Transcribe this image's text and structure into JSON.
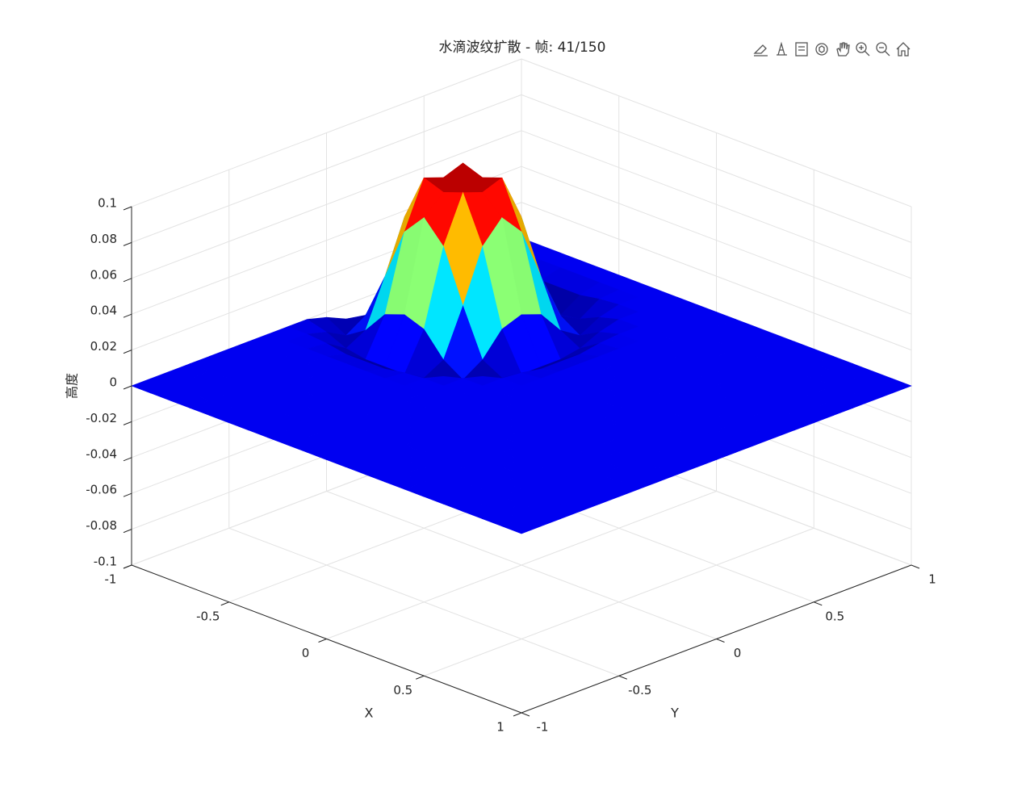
{
  "chart_data": {
    "type": "surface",
    "title": "水滴波纹扩散 - 帧: 41/150",
    "xlabel": "X",
    "ylabel": "Y",
    "zlabel": "高度",
    "xlim": [
      -1,
      1
    ],
    "ylim": [
      -1,
      1
    ],
    "zlim": [
      -0.1,
      0.1
    ],
    "xticks": [
      -1,
      -0.5,
      0,
      0.5,
      1
    ],
    "yticks": [
      -1,
      -0.5,
      0,
      0.5,
      1
    ],
    "zticks": [
      -0.1,
      -0.08,
      -0.06,
      -0.04,
      -0.02,
      0,
      0.02,
      0.04,
      0.06,
      0.08,
      0.1
    ],
    "grid": true,
    "colormap": "jet",
    "clim": [
      -0.01,
      0.08
    ],
    "x": [
      -1,
      -0.9,
      -0.8,
      -0.7,
      -0.6,
      -0.5,
      -0.4,
      -0.3,
      -0.2,
      -0.1,
      0,
      0.1,
      0.2,
      0.3,
      0.4,
      0.5,
      0.6,
      0.7,
      0.8,
      0.9,
      1
    ],
    "y": [
      -1,
      -0.9,
      -0.8,
      -0.7,
      -0.6,
      -0.5,
      -0.4,
      -0.3,
      -0.2,
      -0.1,
      0,
      0.1,
      0.2,
      0.3,
      0.4,
      0.5,
      0.6,
      0.7,
      0.8,
      0.9,
      1
    ],
    "z": [
      [
        0,
        0,
        0,
        0,
        0,
        0,
        0,
        0,
        0,
        0,
        0,
        0,
        0,
        0,
        0,
        0,
        0,
        0,
        0,
        0,
        0
      ],
      [
        0,
        0,
        0,
        0,
        0,
        0,
        0,
        0,
        0,
        0,
        0,
        0,
        0,
        0,
        0,
        0,
        0,
        0,
        0,
        0,
        0
      ],
      [
        0,
        0,
        0,
        0,
        0,
        0,
        0,
        0,
        0,
        0,
        0,
        0,
        0,
        0,
        0,
        0,
        0,
        0,
        0,
        0,
        0
      ],
      [
        0,
        0,
        0,
        0,
        0,
        0,
        0,
        0,
        0,
        0,
        0,
        0,
        0,
        0,
        0,
        0,
        0,
        0,
        0,
        0,
        0
      ],
      [
        0,
        0,
        0,
        0,
        0,
        0,
        0,
        0,
        0,
        0,
        0,
        0,
        0,
        0,
        0,
        0,
        0,
        0,
        0,
        0,
        0
      ],
      [
        0,
        0,
        0,
        0,
        0,
        0,
        0,
        0,
        0,
        0,
        0,
        0,
        0,
        0,
        0,
        0,
        0,
        0,
        0,
        0,
        0
      ],
      [
        0,
        0,
        0,
        0,
        0,
        0,
        0,
        0,
        0,
        0,
        0,
        0,
        0,
        0,
        0,
        0,
        0,
        0,
        0,
        0,
        0
      ],
      [
        0,
        0,
        0,
        0,
        0,
        0,
        0,
        0,
        0,
        0,
        0,
        0,
        0,
        0,
        0,
        0,
        0,
        0,
        0,
        0,
        0
      ],
      [
        0,
        0,
        -0.001,
        -0.003,
        -0.003,
        -0.003,
        -0.001,
        0,
        0,
        0,
        0,
        0,
        0,
        0,
        0,
        0,
        0,
        0,
        0,
        0,
        0
      ],
      [
        0,
        -0.003,
        -0.008,
        -0.01,
        -0.01,
        -0.01,
        -0.008,
        -0.003,
        0,
        0,
        0,
        0,
        0,
        0,
        0,
        0,
        0,
        0,
        0,
        0,
        0
      ],
      [
        -0.003,
        -0.009,
        -0.002,
        0.011,
        0.015,
        0.011,
        -0.002,
        -0.009,
        -0.003,
        0,
        0,
        0,
        0,
        0,
        0,
        0,
        0,
        0,
        0,
        0,
        0
      ],
      [
        -0.008,
        -0.002,
        0.024,
        0.053,
        0.065,
        0.053,
        0.024,
        -0.002,
        -0.008,
        -0.001,
        0,
        0,
        0,
        0,
        0,
        0,
        0,
        0,
        0,
        0,
        0
      ],
      [
        -0.01,
        0.011,
        0.053,
        0.079,
        0.075,
        0.079,
        0.053,
        0.011,
        -0.01,
        -0.003,
        0,
        0,
        0,
        0,
        0,
        0,
        0,
        0,
        0,
        0,
        0
      ],
      [
        -0.01,
        0.015,
        0.065,
        0.075,
        0.07,
        0.075,
        0.065,
        0.015,
        -0.01,
        -0.003,
        0,
        0,
        0,
        0,
        0,
        0,
        0,
        0,
        0,
        0,
        0
      ],
      [
        -0.01,
        0.011,
        0.053,
        0.079,
        0.075,
        0.079,
        0.053,
        0.011,
        -0.01,
        -0.003,
        0,
        0,
        0,
        0,
        0,
        0,
        0,
        0,
        0,
        0,
        0
      ],
      [
        -0.008,
        -0.002,
        0.024,
        0.053,
        0.065,
        0.053,
        0.024,
        -0.002,
        -0.008,
        -0.001,
        0,
        0,
        0,
        0,
        0,
        0,
        0,
        0,
        0,
        0,
        0
      ],
      [
        -0.003,
        -0.009,
        -0.002,
        0.011,
        0.015,
        0.011,
        -0.002,
        -0.009,
        -0.003,
        0,
        0,
        0,
        0,
        0,
        0,
        0,
        0,
        0,
        0,
        0,
        0
      ],
      [
        0,
        -0.003,
        -0.008,
        -0.01,
        -0.01,
        -0.01,
        -0.008,
        -0.003,
        0,
        0,
        0,
        0,
        0,
        0,
        0,
        0,
        0,
        0,
        0,
        0,
        0
      ],
      [
        0,
        0,
        -0.001,
        -0.003,
        -0.003,
        -0.003,
        -0.001,
        0,
        0,
        0,
        0,
        0,
        0,
        0,
        0,
        0,
        0,
        0,
        0,
        0,
        0
      ],
      [
        0,
        0,
        0,
        0,
        0,
        0,
        0,
        0,
        0,
        0,
        0,
        0,
        0,
        0,
        0,
        0,
        0,
        0,
        0,
        0,
        0
      ],
      [
        0,
        0,
        0,
        0,
        0,
        0,
        0,
        0,
        0,
        0,
        0,
        0,
        0,
        0,
        0,
        0,
        0,
        0,
        0,
        0,
        0
      ]
    ]
  }
}
